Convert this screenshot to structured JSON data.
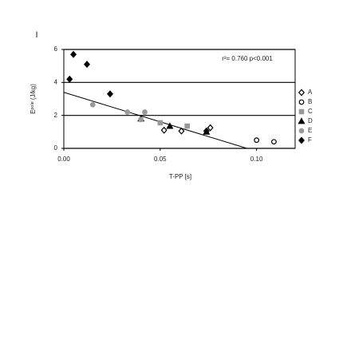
{
  "chart_data": {
    "type": "scatter",
    "panel_label": "I",
    "annotation": "r²= 0.760 p<0.001",
    "x_label": "T-PP [s]",
    "y_label": "Eᵖᵒˡᵉ (J/kg)",
    "xlim": [
      0,
      0.12
    ],
    "ylim": [
      0,
      6
    ],
    "xticks": [
      {
        "value": 0,
        "label": "0.00"
      },
      {
        "value": 0.05,
        "label": "0.05"
      },
      {
        "value": 0.1,
        "label": "0.10"
      }
    ],
    "yticks": [
      0,
      2,
      4,
      6
    ],
    "grid": true,
    "legend": "right",
    "series": [
      {
        "name": "A",
        "marker": "diamond",
        "color": "#000",
        "filled": false,
        "x": [
          0.052,
          0.061,
          0.076,
          0.074
        ],
        "values": [
          1.1,
          1.05,
          1.25,
          1.05
        ]
      },
      {
        "name": "B",
        "marker": "circle",
        "color": "#000",
        "filled": false,
        "x": [
          0.1,
          0.109
        ],
        "values": [
          0.5,
          0.4
        ]
      },
      {
        "name": "C",
        "marker": "square",
        "color": "#999",
        "filled": true,
        "x": [
          0.05,
          0.064
        ],
        "values": [
          1.55,
          1.35
        ]
      },
      {
        "name": "D",
        "marker": "triangle",
        "color": "#000",
        "filled": true,
        "x": [
          0.04,
          0.055,
          0.074
        ],
        "values": [
          1.8,
          1.35,
          1.0
        ]
      },
      {
        "name": "E",
        "marker": "circle",
        "color": "#999",
        "filled": true,
        "x": [
          0.015,
          0.033,
          0.042,
          0.04
        ],
        "values": [
          2.65,
          2.2,
          2.2,
          1.75
        ]
      },
      {
        "name": "F",
        "marker": "diamond",
        "color": "#000",
        "filled": true,
        "x": [
          0.003,
          0.012,
          0.024,
          0.005
        ],
        "values": [
          4.2,
          5.1,
          3.3,
          5.7
        ]
      }
    ],
    "regression": {
      "x": [
        0,
        0.095
      ],
      "values": [
        3.4,
        0
      ]
    }
  }
}
